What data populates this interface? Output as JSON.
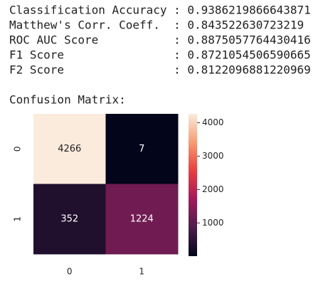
{
  "metrics": [
    {
      "label": "Classification Accuracy",
      "value": 0.9386219866643871
    },
    {
      "label": "Matthew's Corr. Coeff.",
      "value": 0.843522630723219
    },
    {
      "label": "ROC AUC Score",
      "value": 0.8875057764430416
    },
    {
      "label": "F1 Score",
      "value": 0.8721054506590665
    },
    {
      "label": "F2 Score",
      "value": 0.8122096881220969
    }
  ],
  "separator": ":",
  "heading": "Confusion Matrix:",
  "chart_data": {
    "type": "heatmap",
    "x": [
      "0",
      "1"
    ],
    "y": [
      "0",
      "1"
    ],
    "z": [
      [
        4266,
        7
      ],
      [
        352,
        1224
      ]
    ],
    "clim": [
      7,
      4266
    ],
    "cticks": [
      1000,
      2000,
      3000,
      4000
    ],
    "colormap": [
      "#03051a",
      "#4c1d4b",
      "#a11a5b",
      "#e83f3f",
      "#f69c73",
      "#faebdd"
    ],
    "colorbar": true
  }
}
